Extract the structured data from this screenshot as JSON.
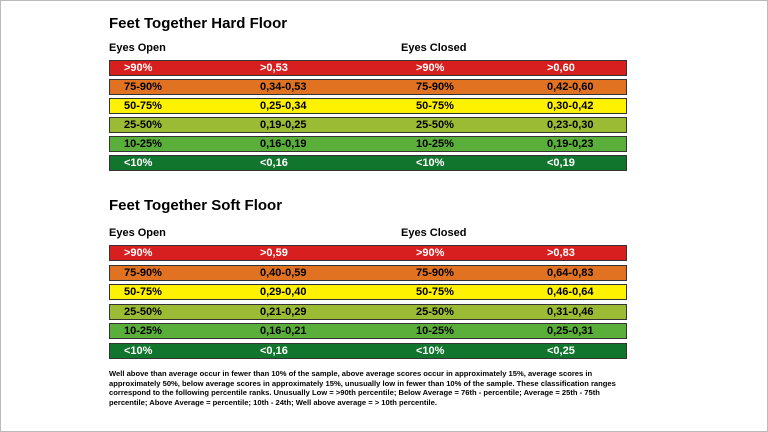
{
  "sections": [
    {
      "title": "Feet Together Hard Floor",
      "headers": [
        "Eyes Open",
        "Eyes Closed"
      ],
      "rows": [
        [
          ">90%",
          ">0,53",
          ">90%",
          ">0,60"
        ],
        [
          "75-90%",
          "0,34-0,53",
          "75-90%",
          "0,42-0,60"
        ],
        [
          "50-75%",
          "0,25-0,34",
          "50-75%",
          "0,30-0,42"
        ],
        [
          "25-50%",
          "0,19-0,25",
          "25-50%",
          "0,23-0,30"
        ],
        [
          "10-25%",
          "0,16-0,19",
          "10-25%",
          "0,19-0,23"
        ],
        [
          "<10%",
          "<0,16",
          "<10%",
          "<0,19"
        ]
      ]
    },
    {
      "title": "Feet Together Soft Floor",
      "headers": [
        "Eyes Open",
        "Eyes Closed"
      ],
      "rows": [
        [
          ">90%",
          ">0,59",
          ">90%",
          ">0,83"
        ],
        [
          "75-90%",
          "0,40-0,59",
          "75-90%",
          "0,64-0,83"
        ],
        [
          "50-75%",
          "0,29-0,40",
          "50-75%",
          "0,46-0,64"
        ],
        [
          "25-50%",
          "0,21-0,29",
          "25-50%",
          "0,31-0,46"
        ],
        [
          "10-25%",
          "0,16-0,21",
          "10-25%",
          "0,25-0,31"
        ],
        [
          "<10%",
          "<0,16",
          "<10%",
          "<0,25"
        ]
      ]
    }
  ],
  "footnote": "Well above than average occur in fewer than 10% of the sample, above average scores occur in approximately 15%, average scores in approximately 50%, below average scores in approximately 15%, unusually low in fewer than 10% of the sample. These classification ranges correspond to the following percentile ranks. Unusually Low = >90th percentile; Below Average = 76th - percentile; Average = 25th - 75th percentile; Above Average = percentile; 10th - 24th; Well above average = > 10th percentile."
}
